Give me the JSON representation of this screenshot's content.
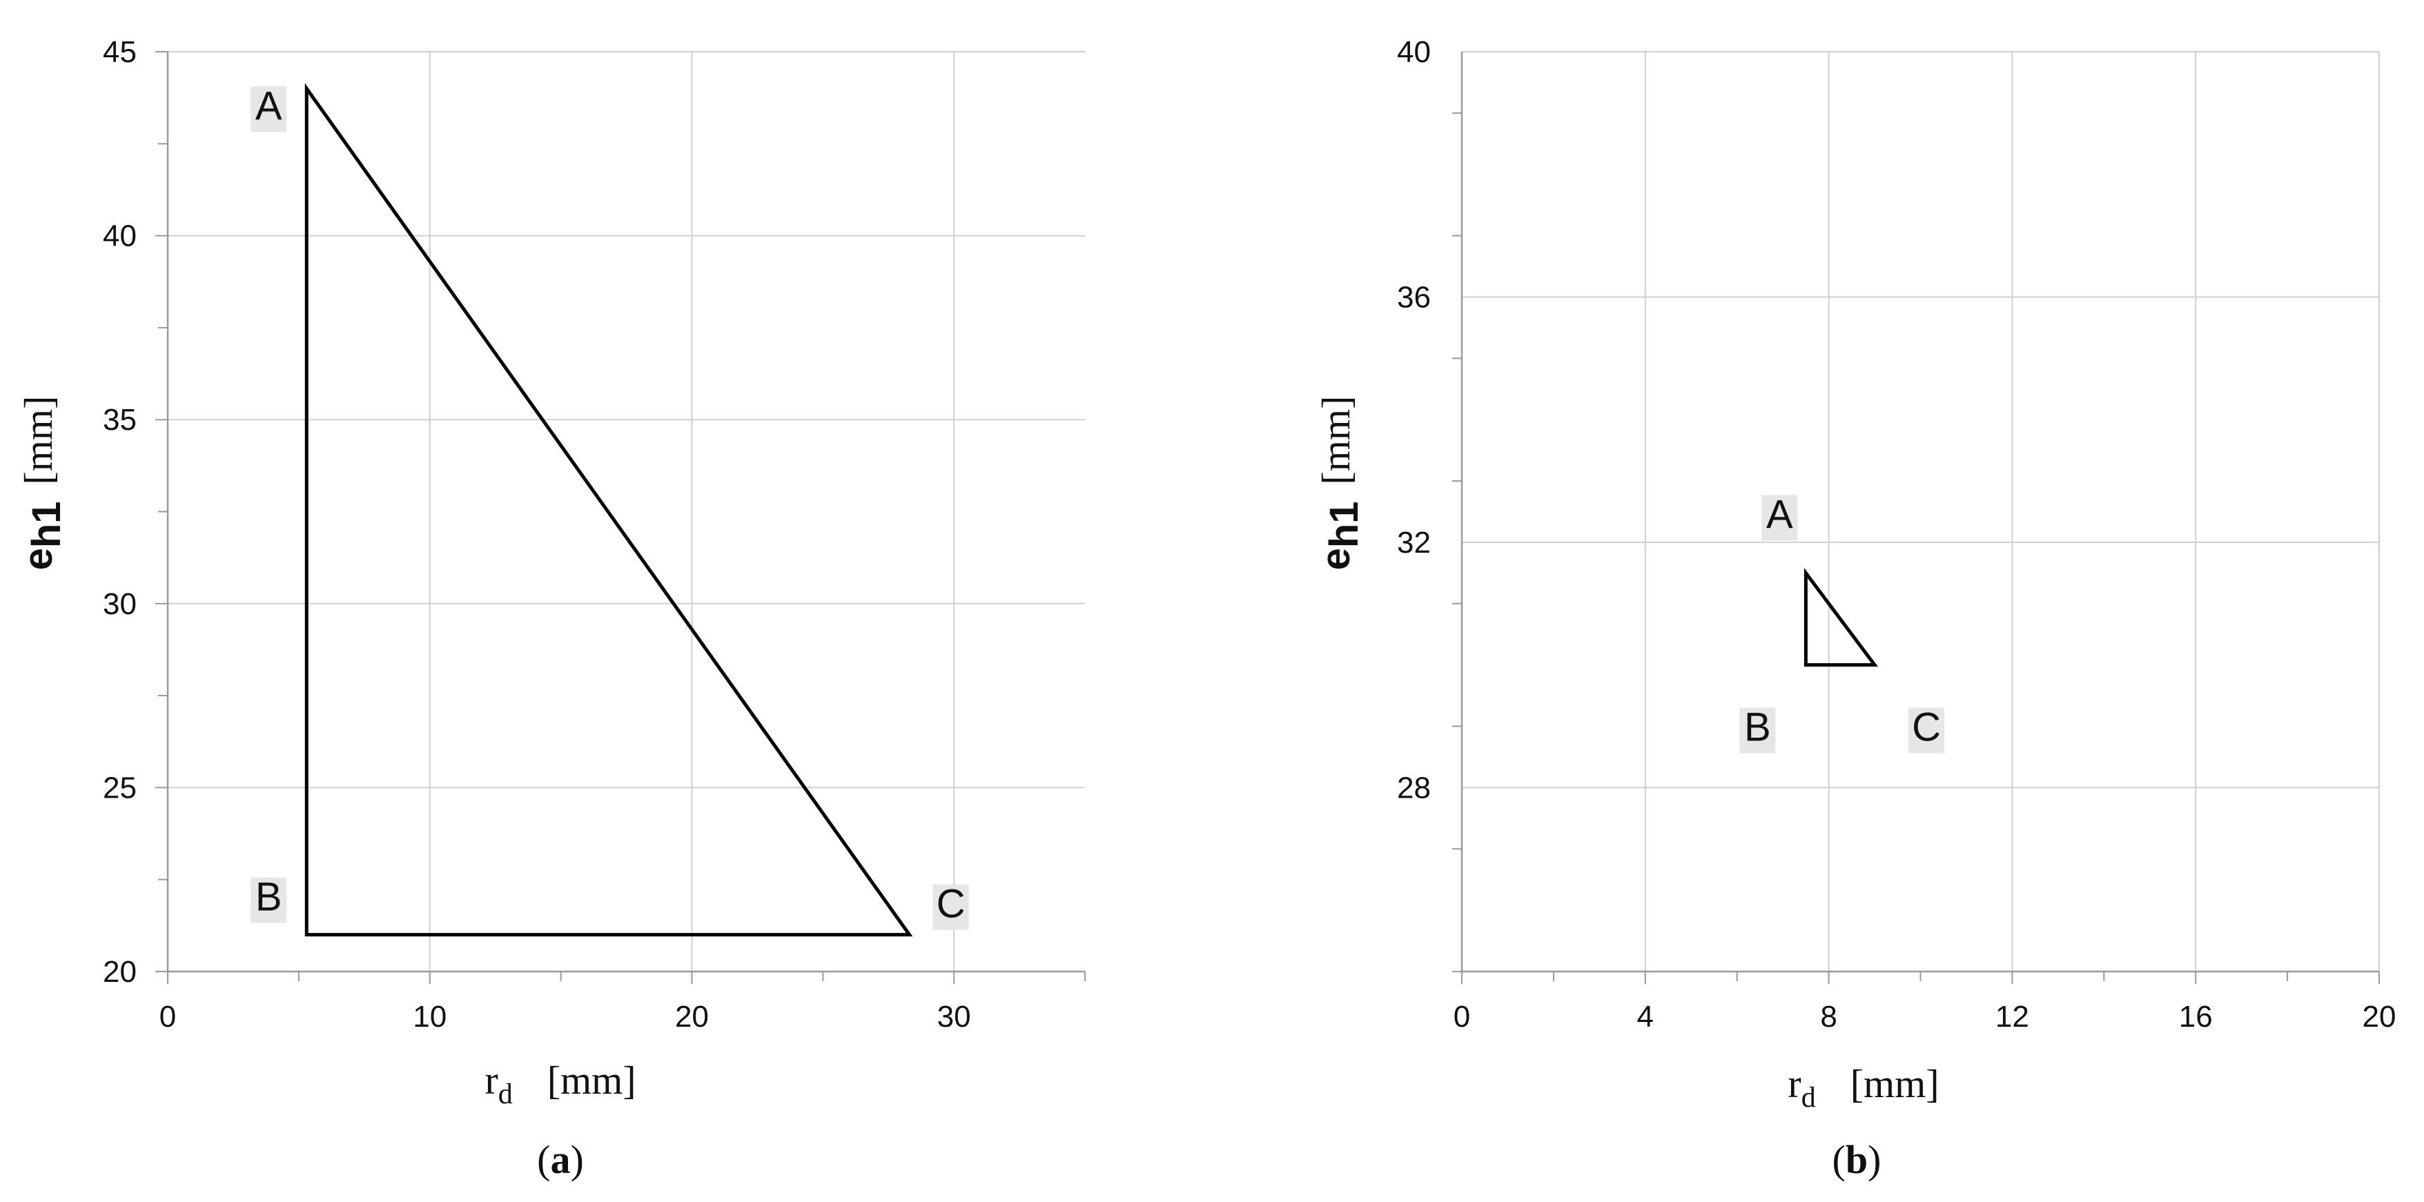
{
  "chart_data": [
    {
      "type": "line",
      "panel_label": "a",
      "xlabel": {
        "symbol": "r",
        "subscript": "d",
        "unit": "[mm]"
      },
      "ylabel": {
        "symbol": "e",
        "subscript": "h1",
        "unit": "[mm]"
      },
      "xlim": [
        0,
        35
      ],
      "ylim": [
        20,
        45
      ],
      "x_ticks": [
        "0",
        "10",
        "20",
        "30"
      ],
      "y_ticks": [
        "20",
        "25",
        "30",
        "35",
        "40",
        "45"
      ],
      "grid": true,
      "series": [
        {
          "closed": true,
          "points": [
            {
              "label": "A",
              "x": 5.3,
              "y": 44
            },
            {
              "label": "B",
              "x": 5.3,
              "y": 21
            },
            {
              "label": "C",
              "x": 28.3,
              "y": 21
            }
          ]
        }
      ]
    },
    {
      "type": "line",
      "panel_label": "b",
      "xlabel": {
        "symbol": "r",
        "subscript": "d",
        "unit": "[mm]"
      },
      "ylabel": {
        "symbol": "e",
        "subscript": "h1",
        "unit": "[mm]"
      },
      "xlim": [
        0,
        20
      ],
      "ylim": [
        25,
        40
      ],
      "x_ticks": [
        "0",
        "4",
        "8",
        "12",
        "16",
        "20"
      ],
      "y_ticks": [
        "28",
        "32",
        "36",
        "40"
      ],
      "grid": true,
      "series": [
        {
          "closed": true,
          "points": [
            {
              "label": "A",
              "x": 7.5,
              "y": 31.5
            },
            {
              "label": "B",
              "x": 7.5,
              "y": 30
            },
            {
              "label": "C",
              "x": 9,
              "y": 30
            }
          ]
        }
      ]
    }
  ],
  "colors": {
    "line": "#000000",
    "grid": "#cfcfcf",
    "label_bg": "#e6e6e6"
  }
}
